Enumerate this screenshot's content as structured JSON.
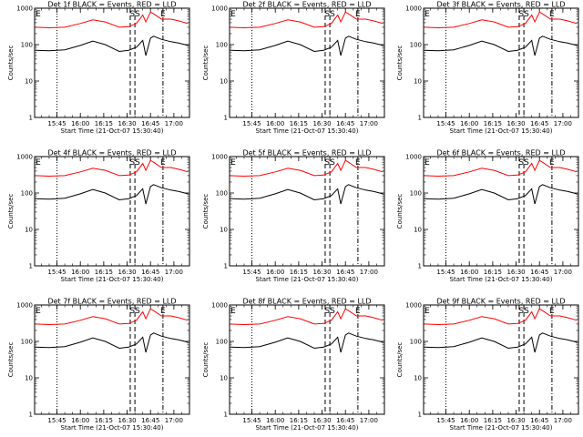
{
  "chart_data": {
    "type": "line",
    "panels": [
      {
        "title": "Det 1f BLACK = Events, RED = LLD",
        "markers": [
          "E",
          "SS",
          "E"
        ]
      },
      {
        "title": "Det 2f BLACK = Events, RED = LLD",
        "markers": [
          "E",
          "SS",
          "E"
        ]
      },
      {
        "title": "Det 3f BLACK = Events, RED = LLD",
        "markers": [
          "E",
          "SS",
          "E"
        ]
      },
      {
        "title": "Det 4f BLACK = Events, RED = LLD",
        "markers": [
          "E",
          "SS",
          "E"
        ]
      },
      {
        "title": "Det 5f BLACK = Events, RED = LLD",
        "markers": [
          "E",
          "SS",
          "E"
        ]
      },
      {
        "title": "Det 6f BLACK = Events, RED = LLD",
        "markers": [
          "E",
          "SS",
          "E"
        ]
      },
      {
        "title": "Det 7f BLACK = Events, RED = LLD",
        "markers": [
          "E",
          "SS",
          "E"
        ]
      },
      {
        "title": "Det 8f BLACK = Events, RED = LLD",
        "markers": [
          "E",
          "SS",
          "E"
        ]
      },
      {
        "title": "Det 9f BLACK = Events, RED = LLD",
        "markers": [
          "E",
          "SS",
          "E"
        ]
      }
    ],
    "xlabel": "Start Time (21-Oct-07 15:30:40)",
    "ylabel": "Counts/sec",
    "x_ticks": [
      "15:45",
      "16:00",
      "16:15",
      "16:30",
      "16:45",
      "17:00"
    ],
    "y_ticks": [
      "1",
      "10",
      "100",
      "1000"
    ],
    "y_scale": "log",
    "ylim": [
      1,
      1000
    ],
    "xlim": [
      "15:30:40",
      "17:10"
    ],
    "series_colors": {
      "events": "#000000",
      "lld": "#ff0000"
    },
    "series": [
      {
        "color": "#000000",
        "style": "line",
        "x": [
          "15:31",
          "15:40",
          "15:50",
          "16:00",
          "16:08",
          "16:16",
          "16:25",
          "16:31",
          "16:36",
          "16:40",
          "16:42",
          "16:45",
          "16:47",
          "16:52",
          "16:58",
          "17:03",
          "17:09"
        ],
        "values": [
          70,
          68,
          72,
          95,
          125,
          100,
          65,
          70,
          85,
          130,
          50,
          150,
          170,
          140,
          120,
          110,
          95
        ]
      },
      {
        "color": "#ff0000",
        "style": "line",
        "x": [
          "15:31",
          "15:40",
          "15:50",
          "16:00",
          "16:08",
          "16:16",
          "16:25",
          "16:31",
          "16:36",
          "16:40",
          "16:42",
          "16:45",
          "16:47",
          "16:52",
          "16:58",
          "17:03",
          "17:09"
        ],
        "values": [
          300,
          290,
          300,
          380,
          480,
          420,
          300,
          310,
          380,
          650,
          420,
          780,
          700,
          500,
          500,
          450,
          380
        ]
      }
    ],
    "vertical_lines": [
      {
        "x": "15:45",
        "style": "dotted"
      },
      {
        "x": "16:32",
        "style": "dashed"
      },
      {
        "x": "16:35",
        "style": "dashed"
      },
      {
        "x": "16:53",
        "style": "dash-dot"
      }
    ]
  }
}
